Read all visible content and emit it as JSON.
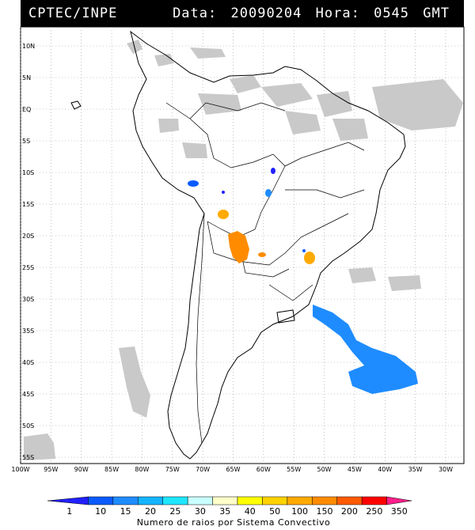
{
  "header": {
    "source": "CPTEC/INPE",
    "date_label": "Data:",
    "date_value": "20090204",
    "hour_label": "Hora:",
    "hour_value": "0545",
    "timezone": "GMT"
  },
  "map": {
    "lat_range": [
      -56,
      13
    ],
    "lon_range": [
      -100,
      -27
    ],
    "lat_ticks": [
      "10N",
      "5N",
      "EQ",
      "5S",
      "10S",
      "15S",
      "20S",
      "25S",
      "30S",
      "35S",
      "40S",
      "45S",
      "50S",
      "55S"
    ],
    "lon_ticks": [
      "100W",
      "95W",
      "90W",
      "85W",
      "80W",
      "75W",
      "70W",
      "65W",
      "60W",
      "55W",
      "50W",
      "45W",
      "40W",
      "35W",
      "30W"
    ],
    "grid": "dotted",
    "ocean_color": "#ffffff",
    "cloud_color": "#c8c8c8"
  },
  "legend": {
    "values": [
      "1",
      "10",
      "15",
      "20",
      "25",
      "30",
      "35",
      "40",
      "50",
      "100",
      "150",
      "200",
      "250",
      "350"
    ],
    "colors": [
      "#2020ff",
      "#0a5aff",
      "#1e8cff",
      "#14b4ff",
      "#1ee6ff",
      "#c8ffff",
      "#ffffc8",
      "#ffff00",
      "#ffd200",
      "#ffaa00",
      "#ff8c00",
      "#ff5a00",
      "#ff0000",
      "#ff1e8c"
    ],
    "caption": "Numero de raios por Sistema Convectivo"
  }
}
